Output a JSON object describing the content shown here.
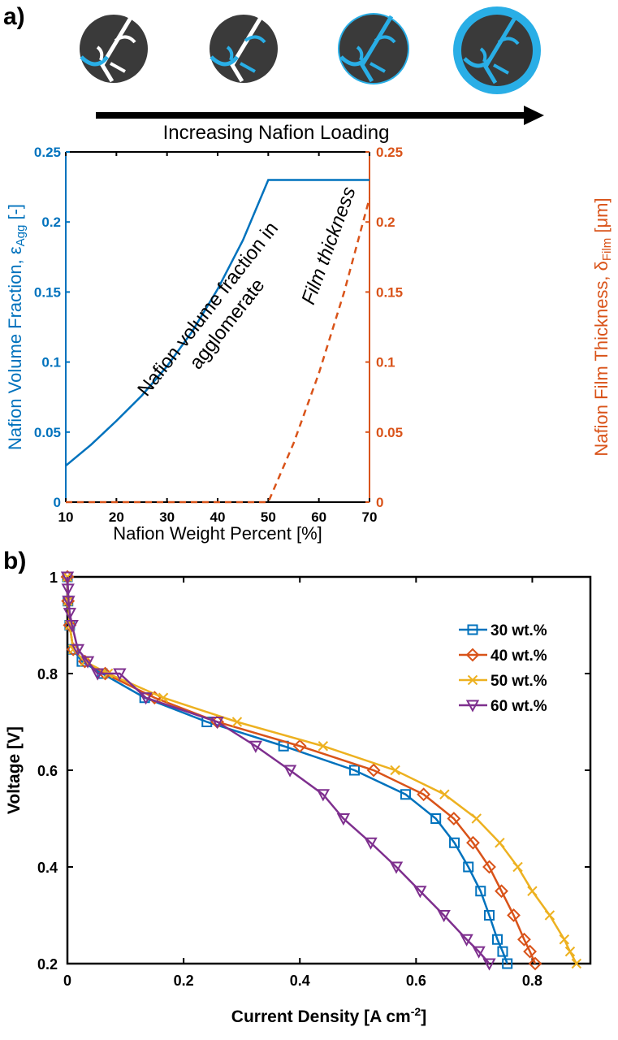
{
  "panel_labels": [
    "a)",
    "b)"
  ],
  "illustration": {
    "caption": "Increasing Nafion Loading",
    "colors": {
      "particle": "#3a3a3a",
      "nafion": "#29aee6",
      "pore": "#ffffff"
    }
  },
  "chart_data": [
    {
      "type": "line",
      "xlabel": "Nafion Weight Percent [%]",
      "ylabel_left": "Nafion Volume Fraction, ε",
      "ylabel_left_sub": "Agg",
      "ylabel_left_suffix": " [-]",
      "ylabel_right": "Nafion Film Thickness, δ",
      "ylabel_right_sub": "Film",
      "ylabel_right_suffix": " [μm]",
      "xlim": [
        10,
        70
      ],
      "ylim_left": [
        0,
        0.25
      ],
      "ylim_right": [
        0,
        0.25
      ],
      "xticks": [
        "10",
        "20",
        "30",
        "40",
        "50",
        "60",
        "70"
      ],
      "yticks_left": [
        "0",
        "0.05",
        "0.1",
        "0.15",
        "0.2",
        "0.25"
      ],
      "yticks_right": [
        "0",
        "0.05",
        "0.1",
        "0.15",
        "0.2",
        "0.25"
      ],
      "grid": false,
      "series": [
        {
          "axis": "left",
          "color": "#0072bd",
          "style": "solid",
          "x": [
            10,
            15,
            20,
            25,
            30,
            35,
            40,
            45,
            50,
            60,
            70
          ],
          "y": [
            0.026,
            0.041,
            0.058,
            0.076,
            0.097,
            0.122,
            0.152,
            0.187,
            0.23,
            0.23,
            0.23
          ]
        },
        {
          "axis": "right",
          "color": "#d95319",
          "style": "dashed",
          "x": [
            10,
            50,
            55,
            60,
            65,
            70
          ],
          "y": [
            0,
            0,
            0.042,
            0.092,
            0.15,
            0.217
          ]
        }
      ],
      "annotations": [
        {
          "line1": "Nafion volume fraction in",
          "line2": "agglomerate"
        },
        {
          "line1": "Film thickness"
        }
      ],
      "axis_colors": {
        "left": "#0072bd",
        "right": "#d95319"
      }
    },
    {
      "type": "line",
      "xlabel": "Current Density [A cm",
      "xlabel_sup": "-2",
      "xlabel_suffix": "]",
      "ylabel": "Voltage [V]",
      "xlim": [
        0,
        0.9
      ],
      "ylim": [
        0.2,
        1.0
      ],
      "xticks": [
        "0",
        "0.2",
        "0.4",
        "0.6",
        "0.8"
      ],
      "yticks": [
        "0.2",
        "0.4",
        "0.6",
        "0.8",
        "1"
      ],
      "grid": false,
      "legend": "top-right",
      "series": [
        {
          "name": "30 wt.%",
          "color": "#0072bd",
          "marker": "square",
          "x": [
            0,
            0.001,
            0.004,
            0.01,
            0.025,
            0.06,
            0.133,
            0.24,
            0.372,
            0.494,
            0.582,
            0.634,
            0.666,
            0.69,
            0.711,
            0.726,
            0.74,
            0.749,
            0.757
          ],
          "y": [
            1.0,
            0.95,
            0.9,
            0.85,
            0.825,
            0.8,
            0.75,
            0.7,
            0.65,
            0.6,
            0.55,
            0.5,
            0.45,
            0.4,
            0.35,
            0.3,
            0.25,
            0.225,
            0.2
          ]
        },
        {
          "name": "40 wt.%",
          "color": "#d95319",
          "marker": "diamond",
          "x": [
            0,
            0.001,
            0.004,
            0.01,
            0.03,
            0.065,
            0.15,
            0.258,
            0.4,
            0.527,
            0.613,
            0.665,
            0.698,
            0.726,
            0.747,
            0.768,
            0.786,
            0.796,
            0.805
          ],
          "y": [
            1.0,
            0.95,
            0.9,
            0.85,
            0.825,
            0.8,
            0.75,
            0.7,
            0.65,
            0.6,
            0.55,
            0.5,
            0.45,
            0.4,
            0.35,
            0.3,
            0.25,
            0.225,
            0.2
          ]
        },
        {
          "name": "50 wt.%",
          "color": "#edb120",
          "marker": "x",
          "x": [
            0,
            0.001,
            0.004,
            0.01,
            0.03,
            0.07,
            0.165,
            0.292,
            0.44,
            0.564,
            0.649,
            0.704,
            0.744,
            0.775,
            0.8,
            0.83,
            0.855,
            0.865,
            0.876
          ],
          "y": [
            1.0,
            0.95,
            0.9,
            0.85,
            0.825,
            0.8,
            0.75,
            0.7,
            0.65,
            0.6,
            0.55,
            0.5,
            0.45,
            0.4,
            0.35,
            0.3,
            0.25,
            0.225,
            0.2
          ]
        },
        {
          "name": "60 wt.%",
          "color": "#7e2f8e",
          "marker": "triangle-down",
          "x": [
            0,
            0.001,
            0.002,
            0.004,
            0.008,
            0.018,
            0.035,
            0.052,
            0.09,
            0.135,
            0.258,
            0.324,
            0.383,
            0.44,
            0.475,
            0.522,
            0.566,
            0.607,
            0.648,
            0.687,
            0.708,
            0.726
          ],
          "y": [
            1.0,
            0.975,
            0.95,
            0.925,
            0.9,
            0.85,
            0.825,
            0.8,
            0.8,
            0.75,
            0.7,
            0.65,
            0.6,
            0.55,
            0.5,
            0.45,
            0.4,
            0.35,
            0.3,
            0.25,
            0.225,
            0.2
          ]
        }
      ]
    }
  ]
}
